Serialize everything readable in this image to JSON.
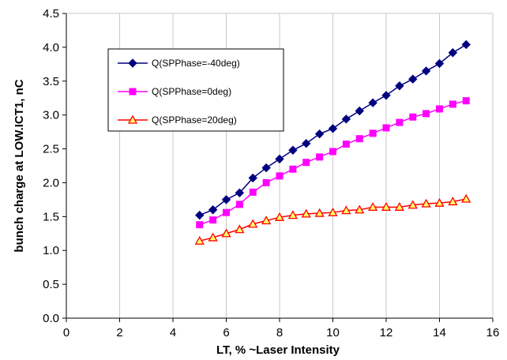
{
  "chart_data": {
    "type": "line",
    "xlabel": "LT, % ~Laser Intensity",
    "ylabel": "bunch charge at LOW.ICT1, nC",
    "xlim": [
      0,
      16
    ],
    "ylim": [
      0,
      4.5
    ],
    "x_ticks": [
      "0",
      "2",
      "4",
      "6",
      "8",
      "10",
      "12",
      "14",
      "16"
    ],
    "y_ticks": [
      "0.0",
      "0.5",
      "1.0",
      "1.5",
      "2.0",
      "2.5",
      "3.0",
      "3.5",
      "4.0",
      "4.5"
    ],
    "grid": "vertical",
    "legend_position": "upper-left",
    "x": [
      5,
      5.5,
      6,
      6.5,
      7,
      7.5,
      8,
      8.5,
      9,
      9.5,
      10,
      10.5,
      11,
      11.5,
      12,
      12.5,
      13,
      13.5,
      14,
      14.5,
      15
    ],
    "series": [
      {
        "name": "Q(SPPhase=-40deg)",
        "color": "#000080",
        "marker": "diamond",
        "values": [
          1.52,
          1.6,
          1.75,
          1.85,
          2.07,
          2.22,
          2.35,
          2.48,
          2.58,
          2.72,
          2.8,
          2.94,
          3.06,
          3.18,
          3.29,
          3.43,
          3.53,
          3.65,
          3.76,
          3.92,
          4.04
        ]
      },
      {
        "name": "Q(SPPhase=0deg)",
        "color": "#FF00FF",
        "marker": "square",
        "values": [
          1.38,
          1.45,
          1.56,
          1.68,
          1.86,
          2.0,
          2.1,
          2.2,
          2.3,
          2.38,
          2.46,
          2.57,
          2.65,
          2.73,
          2.81,
          2.89,
          2.97,
          3.02,
          3.09,
          3.16,
          3.21
        ]
      },
      {
        "name": "Q(SPPhase=20deg)",
        "color": "#FF0000",
        "marker": "triangle",
        "values": [
          1.14,
          1.19,
          1.25,
          1.31,
          1.39,
          1.44,
          1.49,
          1.52,
          1.54,
          1.55,
          1.56,
          1.59,
          1.6,
          1.64,
          1.64,
          1.64,
          1.67,
          1.69,
          1.7,
          1.72,
          1.76
        ]
      }
    ]
  }
}
